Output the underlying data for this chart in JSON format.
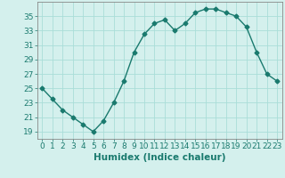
{
  "x": [
    0,
    1,
    2,
    3,
    4,
    5,
    6,
    7,
    8,
    9,
    10,
    11,
    12,
    13,
    14,
    15,
    16,
    17,
    18,
    19,
    20,
    21,
    22,
    23
  ],
  "y": [
    25,
    23.5,
    22,
    21,
    20,
    19,
    20.5,
    23,
    26,
    30,
    32.5,
    34,
    34.5,
    33,
    34,
    35.5,
    36,
    36,
    35.5,
    35,
    33.5,
    30,
    27,
    26
  ],
  "line_color": "#1a7a6e",
  "marker": "D",
  "marker_size": 2.5,
  "line_width": 1.0,
  "xlabel": "Humidex (Indice chaleur)",
  "xlim": [
    -0.5,
    23.5
  ],
  "ylim": [
    18,
    37
  ],
  "yticks": [
    19,
    21,
    23,
    25,
    27,
    29,
    31,
    33,
    35
  ],
  "xticks": [
    0,
    1,
    2,
    3,
    4,
    5,
    6,
    7,
    8,
    9,
    10,
    11,
    12,
    13,
    14,
    15,
    16,
    17,
    18,
    19,
    20,
    21,
    22,
    23
  ],
  "bg_color": "#d4f0ed",
  "grid_color": "#aaddd8",
  "xlabel_fontsize": 7.5,
  "tick_fontsize": 6.5
}
